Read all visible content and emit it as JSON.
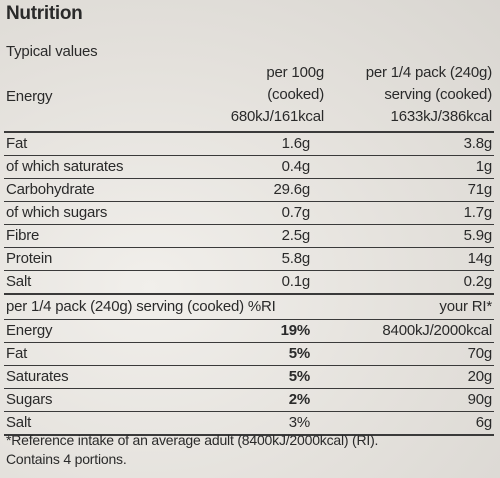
{
  "panel": {
    "title": "Nutrition",
    "subtitle": "Typical values",
    "energy_label": "Energy",
    "col_per100_line1": "per 100g",
    "col_per100_line2": "(cooked)",
    "col_per100_energy": "680kJ/161kcal",
    "col_serving_line1": "per 1/4 pack (240g)",
    "col_serving_line2": "serving (cooked)",
    "col_serving_energy": "1633kJ/386kcal"
  },
  "nutrients": [
    {
      "name": "Fat",
      "per100": "1.6g",
      "serving": "3.8g"
    },
    {
      "name": "of which saturates",
      "per100": "0.4g",
      "serving": "1g"
    },
    {
      "name": "Carbohydrate",
      "per100": "29.6g",
      "serving": "71g"
    },
    {
      "name": "of which sugars",
      "per100": "0.7g",
      "serving": "1.7g"
    },
    {
      "name": "Fibre",
      "per100": "2.5g",
      "serving": "5.9g"
    },
    {
      "name": "Protein",
      "per100": "5.8g",
      "serving": "14g"
    },
    {
      "name": "Salt",
      "per100": "0.1g",
      "serving": "0.2g"
    }
  ],
  "ri": {
    "header_left": "per 1/4 pack (240g) serving (cooked) %RI",
    "header_right": "your RI*",
    "rows": [
      {
        "name": "Energy",
        "pct": "19%",
        "ri": "8400kJ/2000kcal"
      },
      {
        "name": "Fat",
        "pct": "5%",
        "ri": "70g"
      },
      {
        "name": "Saturates",
        "pct": "5%",
        "ri": "20g"
      },
      {
        "name": "Sugars",
        "pct": "2%",
        "ri": "90g"
      },
      {
        "name": "Salt",
        "pct": "3%",
        "ri": "6g"
      }
    ]
  },
  "footnote": {
    "line1": "*Reference intake of an average adult (8400kJ/2000kcal) (RI).",
    "line2": "Contains 4 portions."
  }
}
